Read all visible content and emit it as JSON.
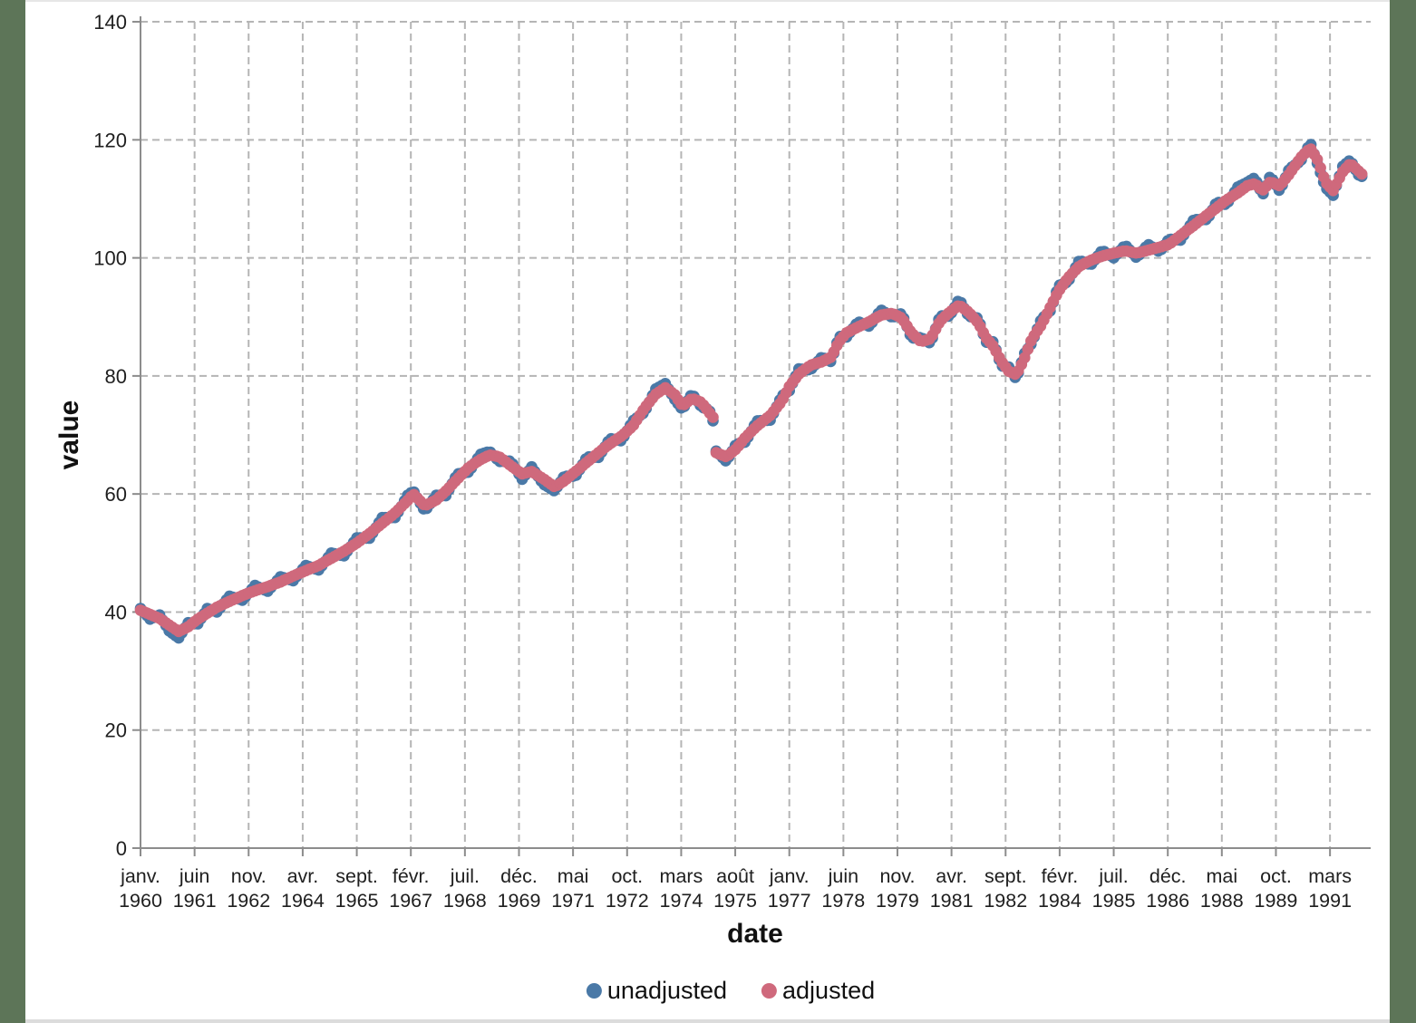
{
  "chart_data": {
    "type": "scatter",
    "title": "",
    "xlabel": "date",
    "ylabel": "value",
    "grid": true,
    "legend_position": "bottom",
    "ylim": [
      0,
      140
    ],
    "y_ticks": [
      0,
      20,
      40,
      60,
      80,
      100,
      120,
      140
    ],
    "x_range_years": [
      1960.0,
      1992.0
    ],
    "resolution_note": "monthly dots; series values estimated from plot, anchors interpolated monthly",
    "x_ticks": [
      {
        "month": "janv.",
        "year": "1960",
        "t": 1960.0
      },
      {
        "month": "juin",
        "year": "1961",
        "t": 1961.417
      },
      {
        "month": "nov.",
        "year": "1962",
        "t": 1962.833
      },
      {
        "month": "avr.",
        "year": "1964",
        "t": 1964.25
      },
      {
        "month": "sept.",
        "year": "1965",
        "t": 1965.667
      },
      {
        "month": "févr.",
        "year": "1967",
        "t": 1967.083
      },
      {
        "month": "juil.",
        "year": "1968",
        "t": 1968.5
      },
      {
        "month": "déc.",
        "year": "1969",
        "t": 1969.917
      },
      {
        "month": "mai",
        "year": "1971",
        "t": 1971.333
      },
      {
        "month": "oct.",
        "year": "1972",
        "t": 1972.75
      },
      {
        "month": "mars",
        "year": "1974",
        "t": 1974.167
      },
      {
        "month": "août",
        "year": "1975",
        "t": 1975.583
      },
      {
        "month": "janv.",
        "year": "1977",
        "t": 1977.0
      },
      {
        "month": "juin",
        "year": "1978",
        "t": 1978.417
      },
      {
        "month": "nov.",
        "year": "1979",
        "t": 1979.833
      },
      {
        "month": "avr.",
        "year": "1981",
        "t": 1981.25
      },
      {
        "month": "sept.",
        "year": "1982",
        "t": 1982.667
      },
      {
        "month": "févr.",
        "year": "1984",
        "t": 1984.083
      },
      {
        "month": "juil.",
        "year": "1985",
        "t": 1985.5
      },
      {
        "month": "déc.",
        "year": "1986",
        "t": 1986.917
      },
      {
        "month": "mai",
        "year": "1988",
        "t": 1988.333
      },
      {
        "month": "oct.",
        "year": "1989",
        "t": 1989.75
      },
      {
        "month": "mars",
        "year": "1991",
        "t": 1991.167
      }
    ],
    "series": [
      {
        "name": "unadjusted",
        "color": "#4a79a7",
        "points": [
          [
            1960.0,
            40.6
          ],
          [
            1960.25,
            38.8
          ],
          [
            1960.5,
            39.5
          ],
          [
            1960.75,
            36.8
          ],
          [
            1961.0,
            35.6
          ],
          [
            1961.25,
            38.2
          ],
          [
            1961.5,
            38.0
          ],
          [
            1961.75,
            40.6
          ],
          [
            1962.0,
            40.0
          ],
          [
            1962.33,
            42.7
          ],
          [
            1962.67,
            42.0
          ],
          [
            1963.0,
            44.5
          ],
          [
            1963.33,
            43.5
          ],
          [
            1963.67,
            46.0
          ],
          [
            1964.0,
            45.3
          ],
          [
            1964.33,
            47.9
          ],
          [
            1964.67,
            47.1
          ],
          [
            1965.0,
            50.0
          ],
          [
            1965.33,
            49.5
          ],
          [
            1965.67,
            52.6
          ],
          [
            1966.0,
            52.5
          ],
          [
            1966.33,
            56.0
          ],
          [
            1966.67,
            56.0
          ],
          [
            1967.0,
            59.8
          ],
          [
            1967.15,
            60.5
          ],
          [
            1967.45,
            57.1
          ],
          [
            1967.75,
            59.8
          ],
          [
            1968.0,
            59.7
          ],
          [
            1968.3,
            63.4
          ],
          [
            1968.6,
            63.7
          ],
          [
            1968.9,
            66.7
          ],
          [
            1969.15,
            67.2
          ],
          [
            1969.4,
            65.5
          ],
          [
            1969.7,
            65.6
          ],
          [
            1970.0,
            62.5
          ],
          [
            1970.25,
            64.6
          ],
          [
            1970.55,
            61.7
          ],
          [
            1970.85,
            60.5
          ],
          [
            1971.1,
            63.0
          ],
          [
            1971.4,
            63.0
          ],
          [
            1971.7,
            66.3
          ],
          [
            1972.0,
            66.2
          ],
          [
            1972.3,
            69.4
          ],
          [
            1972.6,
            69.0
          ],
          [
            1972.9,
            72.4
          ],
          [
            1973.2,
            73.8
          ],
          [
            1973.5,
            77.8
          ],
          [
            1973.75,
            78.7
          ],
          [
            1974.0,
            76.0
          ],
          [
            1974.2,
            74.3
          ],
          [
            1974.45,
            77.0
          ],
          [
            1974.7,
            74.7
          ],
          [
            1974.9,
            74.3
          ],
          [
            1975.0,
            72.4
          ],
          [
            1975.08,
            67.3
          ],
          [
            1975.35,
            65.5
          ],
          [
            1975.6,
            68.4
          ],
          [
            1975.85,
            68.8
          ],
          [
            1976.15,
            72.4
          ],
          [
            1976.5,
            72.5
          ],
          [
            1976.8,
            76.6
          ],
          [
            1977.0,
            77.5
          ],
          [
            1977.25,
            81.2
          ],
          [
            1977.55,
            81.0
          ],
          [
            1977.85,
            83.2
          ],
          [
            1978.1,
            82.4
          ],
          [
            1978.3,
            86.7
          ],
          [
            1978.5,
            86.6
          ],
          [
            1978.8,
            89.2
          ],
          [
            1979.1,
            88.4
          ],
          [
            1979.4,
            91.2
          ],
          [
            1979.7,
            89.9
          ],
          [
            1979.95,
            90.6
          ],
          [
            1980.2,
            86.4
          ],
          [
            1980.45,
            86.5
          ],
          [
            1980.7,
            85.5
          ],
          [
            1980.95,
            90.2
          ],
          [
            1981.2,
            90.1
          ],
          [
            1981.45,
            93.0
          ],
          [
            1981.7,
            90.1
          ],
          [
            1981.95,
            89.8
          ],
          [
            1982.15,
            85.7
          ],
          [
            1982.35,
            85.8
          ],
          [
            1982.55,
            81.7
          ],
          [
            1982.75,
            81.5
          ],
          [
            1982.95,
            79.4
          ],
          [
            1983.15,
            83.7
          ],
          [
            1983.35,
            85.5
          ],
          [
            1983.6,
            89.6
          ],
          [
            1983.85,
            91.1
          ],
          [
            1984.05,
            95.3
          ],
          [
            1984.3,
            95.9
          ],
          [
            1984.6,
            99.6
          ],
          [
            1984.9,
            98.8
          ],
          [
            1985.2,
            101.3
          ],
          [
            1985.5,
            100.0
          ],
          [
            1985.8,
            102.2
          ],
          [
            1986.1,
            100.0
          ],
          [
            1986.4,
            102.3
          ],
          [
            1986.7,
            101.0
          ],
          [
            1986.95,
            103.2
          ],
          [
            1987.25,
            103.0
          ],
          [
            1987.6,
            106.5
          ],
          [
            1987.95,
            106.5
          ],
          [
            1988.2,
            109.5
          ],
          [
            1988.45,
            109.0
          ],
          [
            1988.75,
            112.0
          ],
          [
            1989.0,
            112.8
          ],
          [
            1989.2,
            113.6
          ],
          [
            1989.4,
            110.6
          ],
          [
            1989.6,
            113.9
          ],
          [
            1989.85,
            111.3
          ],
          [
            1990.1,
            115.1
          ],
          [
            1990.4,
            116.4
          ],
          [
            1990.65,
            119.5
          ],
          [
            1990.85,
            115.7
          ],
          [
            1991.05,
            111.9
          ],
          [
            1991.25,
            110.6
          ],
          [
            1991.5,
            115.5
          ],
          [
            1991.7,
            116.6
          ],
          [
            1991.9,
            114.1
          ],
          [
            1992.0,
            113.8
          ]
        ]
      },
      {
        "name": "adjusted",
        "color": "#cf697c",
        "points": [
          [
            1960.0,
            40.3
          ],
          [
            1960.25,
            39.6
          ],
          [
            1960.5,
            38.9
          ],
          [
            1960.75,
            37.8
          ],
          [
            1961.0,
            36.7
          ],
          [
            1961.25,
            37.5
          ],
          [
            1961.5,
            38.8
          ],
          [
            1961.75,
            39.8
          ],
          [
            1962.0,
            40.8
          ],
          [
            1962.33,
            41.8
          ],
          [
            1962.67,
            42.8
          ],
          [
            1963.0,
            43.6
          ],
          [
            1963.33,
            44.3
          ],
          [
            1963.67,
            45.1
          ],
          [
            1964.0,
            46.1
          ],
          [
            1964.33,
            47.0
          ],
          [
            1964.67,
            47.9
          ],
          [
            1965.0,
            49.1
          ],
          [
            1965.33,
            50.3
          ],
          [
            1965.67,
            51.7
          ],
          [
            1966.0,
            53.3
          ],
          [
            1966.33,
            55.0
          ],
          [
            1966.67,
            56.8
          ],
          [
            1967.0,
            58.9
          ],
          [
            1967.15,
            60.0
          ],
          [
            1967.45,
            58.0
          ],
          [
            1967.75,
            59.0
          ],
          [
            1968.0,
            60.5
          ],
          [
            1968.3,
            62.5
          ],
          [
            1968.6,
            64.5
          ],
          [
            1968.9,
            65.8
          ],
          [
            1969.15,
            66.6
          ],
          [
            1969.4,
            66.3
          ],
          [
            1969.7,
            64.8
          ],
          [
            1970.0,
            63.4
          ],
          [
            1970.25,
            63.8
          ],
          [
            1970.55,
            62.6
          ],
          [
            1970.85,
            61.2
          ],
          [
            1971.1,
            62.2
          ],
          [
            1971.4,
            63.8
          ],
          [
            1971.7,
            65.4
          ],
          [
            1972.0,
            67.0
          ],
          [
            1972.3,
            68.5
          ],
          [
            1972.6,
            69.8
          ],
          [
            1972.9,
            71.5
          ],
          [
            1973.2,
            74.5
          ],
          [
            1973.5,
            76.9
          ],
          [
            1973.75,
            78.0
          ],
          [
            1974.0,
            76.8
          ],
          [
            1974.2,
            74.9
          ],
          [
            1974.45,
            76.2
          ],
          [
            1974.7,
            75.5
          ],
          [
            1974.9,
            73.8
          ],
          [
            1975.0,
            73.0
          ],
          [
            1975.08,
            67.0
          ],
          [
            1975.35,
            66.3
          ],
          [
            1975.6,
            67.6
          ],
          [
            1975.85,
            69.6
          ],
          [
            1976.15,
            71.5
          ],
          [
            1976.5,
            73.3
          ],
          [
            1976.8,
            75.7
          ],
          [
            1977.0,
            78.2
          ],
          [
            1977.25,
            80.3
          ],
          [
            1977.55,
            81.8
          ],
          [
            1977.85,
            82.4
          ],
          [
            1978.1,
            83.2
          ],
          [
            1978.3,
            85.8
          ],
          [
            1978.5,
            87.3
          ],
          [
            1978.8,
            88.3
          ],
          [
            1979.1,
            89.2
          ],
          [
            1979.4,
            90.3
          ],
          [
            1979.7,
            90.6
          ],
          [
            1979.95,
            89.8
          ],
          [
            1980.2,
            87.3
          ],
          [
            1980.45,
            85.8
          ],
          [
            1980.7,
            86.3
          ],
          [
            1980.95,
            89.3
          ],
          [
            1981.2,
            90.8
          ],
          [
            1981.45,
            92.0
          ],
          [
            1981.7,
            90.8
          ],
          [
            1981.95,
            89.0
          ],
          [
            1982.15,
            86.5
          ],
          [
            1982.35,
            85.0
          ],
          [
            1982.55,
            82.5
          ],
          [
            1982.75,
            80.8
          ],
          [
            1982.95,
            80.2
          ],
          [
            1983.15,
            82.8
          ],
          [
            1983.35,
            86.2
          ],
          [
            1983.6,
            88.6
          ],
          [
            1983.85,
            91.8
          ],
          [
            1984.05,
            94.3
          ],
          [
            1984.3,
            96.6
          ],
          [
            1984.6,
            98.6
          ],
          [
            1984.9,
            99.6
          ],
          [
            1985.2,
            100.3
          ],
          [
            1985.5,
            100.8
          ],
          [
            1985.8,
            101.2
          ],
          [
            1986.1,
            100.8
          ],
          [
            1986.4,
            101.3
          ],
          [
            1986.7,
            101.8
          ],
          [
            1986.95,
            102.3
          ],
          [
            1987.25,
            103.8
          ],
          [
            1987.6,
            105.5
          ],
          [
            1987.95,
            107.3
          ],
          [
            1988.2,
            108.5
          ],
          [
            1988.45,
            109.8
          ],
          [
            1988.75,
            111.0
          ],
          [
            1989.0,
            112.2
          ],
          [
            1989.2,
            112.6
          ],
          [
            1989.4,
            111.4
          ],
          [
            1989.6,
            112.9
          ],
          [
            1989.85,
            112.2
          ],
          [
            1990.1,
            114.2
          ],
          [
            1990.4,
            117.0
          ],
          [
            1990.65,
            118.6
          ],
          [
            1990.85,
            116.5
          ],
          [
            1991.05,
            112.8
          ],
          [
            1991.25,
            111.4
          ],
          [
            1991.5,
            114.6
          ],
          [
            1991.7,
            116.0
          ],
          [
            1991.9,
            114.8
          ],
          [
            1992.0,
            114.2
          ]
        ]
      }
    ]
  },
  "axes": {
    "x_label": "date",
    "y_label": "value"
  },
  "legend": {
    "items": [
      {
        "label": "unadjusted",
        "color": "#4a79a7"
      },
      {
        "label": "adjusted",
        "color": "#cf697c"
      }
    ]
  },
  "colors": {
    "background_edges": "#5d7558",
    "canvas": "#ffffff",
    "gridline": "#b5b5b5",
    "axis_line": "#8c8c8c",
    "tick_text": "#1f1f1f",
    "unadjusted": "#4a79a7",
    "adjusted": "#cf697c"
  }
}
